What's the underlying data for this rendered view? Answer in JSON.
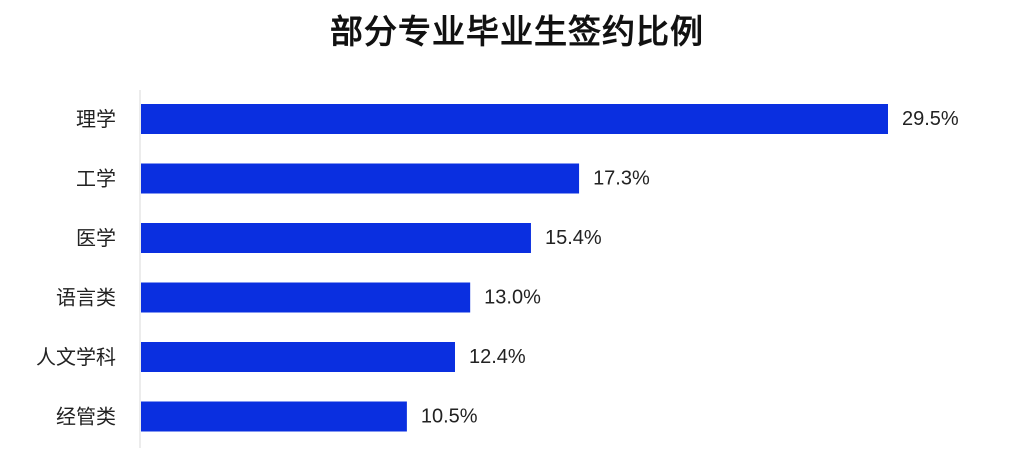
{
  "chart_data": {
    "type": "bar",
    "orientation": "horizontal",
    "title": "部分专业毕业生签约比例",
    "categories": [
      "理学",
      "工学",
      "医学",
      "语言类",
      "人文学科",
      "经管类"
    ],
    "values": [
      29.5,
      17.3,
      15.4,
      13.0,
      12.4,
      10.5
    ],
    "value_labels": [
      "29.5%",
      "17.3%",
      "15.4%",
      "13.0%",
      "12.4%",
      "10.5%"
    ],
    "unit": "%",
    "xlim": [
      0,
      29.5
    ],
    "grid": false,
    "bar_color": "#0a2fe0",
    "axis_color": "#d9d9d9"
  }
}
